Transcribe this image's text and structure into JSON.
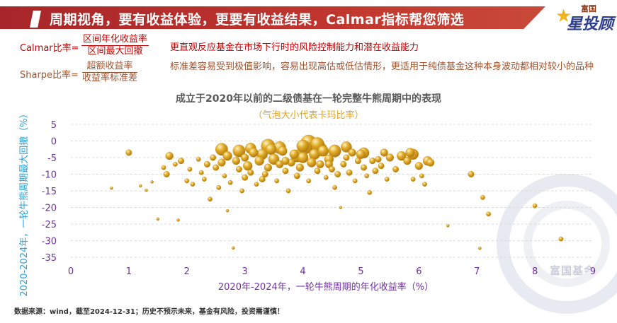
{
  "header": {
    "title": "周期视角，要有收益体验，更要有收益结果，Calmar指标帮您筛选",
    "banner_color": "#b92d2d"
  },
  "logo": {
    "top": "富国",
    "main_a": "星",
    "main_b": "投顾",
    "icon": "star-icon"
  },
  "formulas": [
    {
      "label": "Calmar比率=",
      "numerator": "区间年化收益率",
      "denominator": "区间最大回撤",
      "description": "更直观反应基金在市场下行时的风险控制能力和潜在收益能力",
      "color": "#c00000"
    },
    {
      "label": "Sharpe比率=",
      "numerator": "超额收益率",
      "denominator": "收益率标准差",
      "description": "标准差容易受到极值影响，容易出现高估或低估情形，更适用于纯债基金这种本身波动都相对较小的品种",
      "color": "#a0522d"
    }
  ],
  "chart_data": {
    "type": "scatter",
    "title": "成立于2020年以前的二级债基在一轮完整牛熊周期中的表现",
    "subtitle": "（气泡大小代表卡玛比率）",
    "xlabel": "2020年-2024年，一轮牛熊周期的年化收益率（%）",
    "ylabel": "2020-2024年，一轮牛熊周期最大回撤（%）",
    "xlim": [
      0,
      9
    ],
    "ylim": [
      -35,
      5
    ],
    "xticks": [
      "0",
      "1",
      "2",
      "3",
      "4",
      "5",
      "6",
      "7",
      "8",
      "9"
    ],
    "yticks": [
      "5",
      "0",
      "-5",
      "-10",
      "-15",
      "-20",
      "-25",
      "-30",
      "-35"
    ],
    "grid": true,
    "bubble_color": "#e3ad2a",
    "points": [
      [
        0.7,
        -14.2,
        0.1
      ],
      [
        1.0,
        -3.5,
        0.3
      ],
      [
        1.2,
        -13.5,
        0.1
      ],
      [
        1.3,
        -14.8,
        0.1
      ],
      [
        1.4,
        -12.3,
        0.1
      ],
      [
        1.5,
        -23.5,
        0.1
      ],
      [
        1.6,
        -8.0,
        0.2
      ],
      [
        1.65,
        -10.0,
        0.3
      ],
      [
        1.7,
        -4.5,
        0.4
      ],
      [
        1.8,
        -7.0,
        0.2
      ],
      [
        1.85,
        -23.8,
        0.1
      ],
      [
        1.9,
        -6.0,
        0.3
      ],
      [
        2.0,
        -12.0,
        0.2
      ],
      [
        2.05,
        -8.5,
        0.2
      ],
      [
        2.1,
        -13.0,
        0.2
      ],
      [
        2.2,
        -5.5,
        0.2
      ],
      [
        2.25,
        -9.5,
        0.2
      ],
      [
        2.3,
        -11.5,
        0.2
      ],
      [
        2.35,
        -7.0,
        0.3
      ],
      [
        2.4,
        -17.5,
        0.2
      ],
      [
        2.45,
        -5.0,
        0.3
      ],
      [
        2.5,
        -8.0,
        0.3
      ],
      [
        2.55,
        -14.0,
        0.2
      ],
      [
        2.6,
        -6.5,
        0.4
      ],
      [
        2.65,
        -10.5,
        0.2
      ],
      [
        2.7,
        -4.5,
        0.5
      ],
      [
        2.7,
        -21.0,
        0.1
      ],
      [
        2.75,
        -12.5,
        0.2
      ],
      [
        2.8,
        -32.2,
        0.1
      ],
      [
        2.85,
        -6.0,
        0.4
      ],
      [
        2.9,
        -8.5,
        0.3
      ],
      [
        2.95,
        -15.0,
        0.2
      ],
      [
        3.0,
        -5.0,
        0.4
      ],
      [
        3.0,
        -11.0,
        0.3
      ],
      [
        3.05,
        -7.5,
        0.5
      ],
      [
        3.1,
        -9.5,
        0.3
      ],
      [
        3.15,
        -3.5,
        0.5
      ],
      [
        3.2,
        -13.0,
        0.2
      ],
      [
        3.25,
        -6.0,
        0.5
      ],
      [
        3.3,
        -4.0,
        0.6
      ],
      [
        3.35,
        -10.0,
        0.3
      ],
      [
        3.4,
        -8.0,
        0.4
      ],
      [
        3.45,
        -2.5,
        0.6
      ],
      [
        3.5,
        -5.5,
        0.6
      ],
      [
        3.55,
        -12.0,
        0.2
      ],
      [
        3.6,
        -7.0,
        0.4
      ],
      [
        3.65,
        -3.0,
        0.5
      ],
      [
        3.7,
        -9.0,
        0.3
      ],
      [
        3.75,
        -15.0,
        0.2
      ],
      [
        3.8,
        -6.5,
        0.4
      ],
      [
        3.85,
        -4.0,
        0.5
      ],
      [
        3.9,
        -10.5,
        0.3
      ],
      [
        3.95,
        -8.0,
        0.4
      ],
      [
        4.0,
        -5.0,
        0.6
      ],
      [
        4.05,
        -2.0,
        0.7
      ],
      [
        4.1,
        -0.5,
        0.9
      ],
      [
        4.1,
        -12.0,
        0.2
      ],
      [
        4.15,
        -6.5,
        0.5
      ],
      [
        4.2,
        -4.0,
        0.6
      ],
      [
        4.25,
        -9.0,
        0.3
      ],
      [
        4.3,
        -7.0,
        0.4
      ],
      [
        4.35,
        -3.0,
        0.6
      ],
      [
        4.4,
        -11.0,
        0.2
      ],
      [
        4.45,
        -5.5,
        0.5
      ],
      [
        4.5,
        -8.5,
        0.3
      ],
      [
        4.55,
        -14.0,
        0.2
      ],
      [
        4.6,
        -10.0,
        0.3
      ],
      [
        4.65,
        -20.0,
        0.1
      ],
      [
        4.7,
        -7.0,
        0.3
      ],
      [
        4.75,
        -5.0,
        0.3
      ],
      [
        4.8,
        -9.5,
        0.3
      ],
      [
        4.85,
        -3.5,
        0.4
      ],
      [
        4.9,
        -12.0,
        0.2
      ],
      [
        4.95,
        -6.0,
        0.3
      ],
      [
        5.0,
        -4.0,
        0.5
      ],
      [
        5.05,
        -8.0,
        0.3
      ],
      [
        5.1,
        -10.5,
        0.2
      ],
      [
        5.15,
        -15.5,
        0.2
      ],
      [
        5.2,
        -6.0,
        0.3
      ],
      [
        5.25,
        -9.0,
        0.3
      ],
      [
        5.3,
        -5.5,
        0.3
      ],
      [
        5.35,
        -7.5,
        0.3
      ],
      [
        5.4,
        -3.5,
        0.4
      ],
      [
        5.45,
        -11.5,
        0.2
      ],
      [
        5.5,
        -5.0,
        0.4
      ],
      [
        5.6,
        -8.5,
        0.3
      ],
      [
        5.7,
        -4.5,
        0.5
      ],
      [
        5.8,
        -6.0,
        0.4
      ],
      [
        5.85,
        -3.5,
        0.5
      ],
      [
        5.9,
        -11.5,
        0.2
      ],
      [
        6.0,
        -7.5,
        0.4
      ],
      [
        6.05,
        -10.5,
        0.2
      ],
      [
        6.1,
        -13.0,
        0.2
      ],
      [
        6.2,
        -6.5,
        0.4
      ],
      [
        6.5,
        -25.5,
        0.1
      ],
      [
        6.9,
        -10.0,
        0.3
      ],
      [
        7.05,
        -32.3,
        0.1
      ],
      [
        7.1,
        -17.0,
        0.2
      ],
      [
        7.2,
        -22.0,
        0.2
      ],
      [
        8.0,
        -19.5,
        0.2
      ],
      [
        8.45,
        -29.5,
        0.2
      ],
      [
        2.9,
        -3.0,
        0.7
      ],
      [
        3.4,
        -1.5,
        0.8
      ],
      [
        3.6,
        -2.0,
        0.7
      ],
      [
        4.3,
        -2.5,
        0.8
      ],
      [
        4.55,
        -3.0,
        0.7
      ],
      [
        3.9,
        -4.5,
        0.7
      ],
      [
        5.05,
        -3.6,
        0.6
      ],
      [
        5.9,
        -4.0,
        0.6
      ],
      [
        6.15,
        -6.0,
        0.5
      ],
      [
        2.6,
        -2.5,
        0.7
      ],
      [
        4.75,
        -1.8,
        0.6
      ],
      [
        4.0,
        -1.5,
        0.7
      ],
      [
        3.3,
        -11.5,
        0.3
      ],
      [
        3.7,
        -6.0,
        0.4
      ],
      [
        4.45,
        -7.0,
        0.4
      ],
      [
        3.1,
        -2.2,
        0.6
      ],
      [
        4.25,
        -1.0,
        0.8
      ]
    ]
  },
  "footnote": "数据来源：wind，截至2024-12-31；历史不预示未来，基金有风险，投资需谨慎！",
  "watermark": "富国基金"
}
